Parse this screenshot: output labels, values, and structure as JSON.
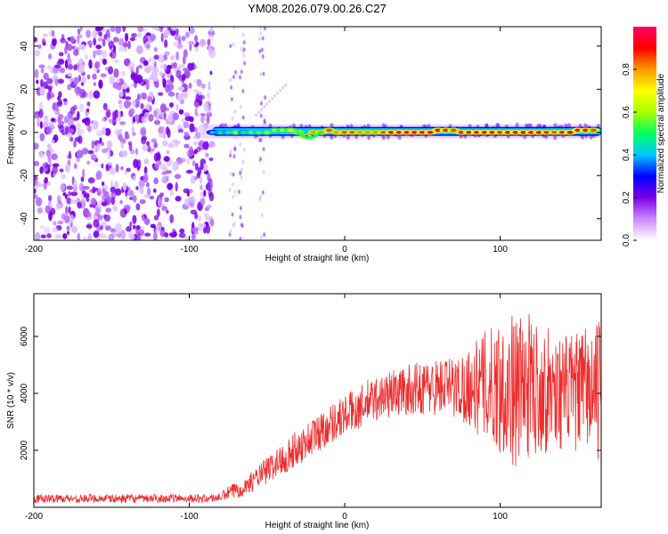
{
  "title": "YM08.2026.079.00.26.C27",
  "colors": {
    "snr_line": "#ee2c2c",
    "axis": "#000000",
    "background": "#ffffff"
  },
  "chart_data": [
    {
      "type": "heatmap",
      "xlabel": "Height of straight line (km)",
      "ylabel": "Frequency (Hz)",
      "xlim": [
        -200,
        165
      ],
      "ylim": [
        -50,
        49
      ],
      "x_ticks": [
        -200,
        -100,
        0,
        100
      ],
      "y_ticks": [
        -40,
        -20,
        0,
        20,
        40
      ],
      "colorbar": {
        "label": "Normalized spectral amplitude",
        "range": [
          0.0,
          1.0
        ],
        "ticks": [
          0.0,
          0.2,
          0.4,
          0.6,
          0.8
        ],
        "colormap": [
          "#ffffff",
          "#cc88ff",
          "#7a00e6",
          "#0000ff",
          "#00c8ff",
          "#00ff60",
          "#aaff00",
          "#ffff00",
          "#ff9900",
          "#ff0000",
          "#ff0066"
        ]
      },
      "features": {
        "noise_region_x": [
          -200,
          -85
        ],
        "noise_stripes_x": [
          -72,
          -53
        ],
        "signal_band_freq": 0.5,
        "signal_band_x": [
          -95,
          165
        ],
        "signal_dip": {
          "x": -23,
          "freq": -3
        },
        "streak": {
          "x": [
            -57,
            -38
          ],
          "freq": [
            8,
            22
          ]
        }
      },
      "cells": [
        [
          -85,
          0,
          0.4
        ],
        [
          -80,
          0,
          0.5
        ],
        [
          -75,
          0,
          0.5
        ],
        [
          -70,
          0,
          0.6
        ],
        [
          -65,
          0,
          0.5
        ],
        [
          -60,
          0,
          0.55
        ],
        [
          -55,
          0,
          0.55
        ],
        [
          -50,
          0,
          0.6
        ],
        [
          -45,
          1,
          0.6
        ],
        [
          -40,
          1,
          0.65
        ],
        [
          -35,
          1,
          0.7
        ],
        [
          -30,
          0,
          0.75
        ],
        [
          -25,
          -2,
          0.95
        ],
        [
          -20,
          0,
          0.8
        ],
        [
          -15,
          0,
          0.8
        ],
        [
          -10,
          1,
          0.85
        ],
        [
          -5,
          0,
          0.8
        ],
        [
          0,
          0,
          0.85
        ],
        [
          5,
          0,
          0.85
        ],
        [
          10,
          0,
          0.8
        ],
        [
          15,
          0,
          0.8
        ],
        [
          20,
          0,
          0.8
        ],
        [
          25,
          0,
          0.85
        ],
        [
          30,
          0,
          0.9
        ],
        [
          35,
          0,
          0.92
        ],
        [
          40,
          0,
          0.95
        ],
        [
          45,
          0,
          0.97
        ],
        [
          50,
          0,
          0.95
        ],
        [
          55,
          0,
          0.92
        ],
        [
          60,
          1,
          0.9
        ],
        [
          65,
          1,
          0.88
        ],
        [
          70,
          1,
          0.85
        ],
        [
          75,
          0,
          0.88
        ],
        [
          80,
          0,
          0.9
        ],
        [
          85,
          0,
          0.92
        ],
        [
          90,
          0,
          0.92
        ],
        [
          95,
          0,
          0.9
        ],
        [
          100,
          0,
          0.88
        ],
        [
          105,
          0,
          0.9
        ],
        [
          110,
          0,
          0.92
        ],
        [
          115,
          0,
          0.9
        ],
        [
          120,
          0,
          0.92
        ],
        [
          125,
          0,
          0.9
        ],
        [
          130,
          0,
          0.88
        ],
        [
          135,
          0,
          0.85
        ],
        [
          140,
          0,
          0.88
        ],
        [
          145,
          0,
          0.9
        ],
        [
          150,
          1,
          0.92
        ],
        [
          155,
          1,
          0.9
        ],
        [
          160,
          1,
          0.85
        ]
      ]
    },
    {
      "type": "line",
      "xlabel": "Height of straight line (km)",
      "ylabel": "SNR (10 * v/v)",
      "xlim": [
        -200,
        165
      ],
      "ylim": [
        0,
        7500
      ],
      "x_ticks": [
        -200,
        -100,
        0,
        100
      ],
      "y_ticks": [
        2000,
        4000,
        6000
      ],
      "series": [
        {
          "name": "SNR",
          "x": [
            -200,
            -190,
            -180,
            -170,
            -160,
            -150,
            -140,
            -130,
            -120,
            -110,
            -100,
            -90,
            -80,
            -75,
            -70,
            -65,
            -60,
            -55,
            -50,
            -45,
            -40,
            -35,
            -30,
            -25,
            -20,
            -15,
            -10,
            -5,
            0,
            5,
            10,
            15,
            20,
            25,
            30,
            35,
            40,
            45,
            50,
            55,
            60,
            65,
            70,
            75,
            80,
            85,
            90,
            95,
            100,
            105,
            110,
            115,
            120,
            125,
            130,
            135,
            140,
            145,
            150,
            155,
            160,
            165
          ],
          "values": [
            300,
            300,
            320,
            300,
            320,
            300,
            310,
            300,
            320,
            310,
            320,
            300,
            350,
            500,
            600,
            700,
            900,
            1100,
            1300,
            1500,
            1700,
            1900,
            2100,
            2300,
            2500,
            2700,
            2900,
            3100,
            3200,
            3400,
            3500,
            3700,
            3800,
            3900,
            4000,
            4050,
            4100,
            4150,
            4200,
            4200,
            4250,
            4250,
            4200,
            4200,
            4250,
            4200,
            4300,
            4200,
            4300,
            4200,
            4100,
            4200,
            4300,
            4200,
            4100,
            4200,
            4000,
            4100,
            4000,
            4200,
            4000,
            4100
          ],
          "amplitude": [
            150,
            150,
            150,
            150,
            150,
            150,
            150,
            150,
            150,
            150,
            150,
            150,
            150,
            250,
            300,
            300,
            350,
            400,
            500,
            500,
            600,
            600,
            650,
            650,
            700,
            700,
            700,
            700,
            750,
            750,
            750,
            800,
            800,
            800,
            850,
            850,
            900,
            900,
            950,
            1000,
            1000,
            1050,
            1100,
            1200,
            1400,
            1700,
            1900,
            2200,
            2400,
            2600,
            2700,
            2600,
            2500,
            2300,
            2200,
            2100,
            2000,
            2000,
            2100,
            2200,
            2300,
            2500
          ]
        }
      ]
    }
  ]
}
